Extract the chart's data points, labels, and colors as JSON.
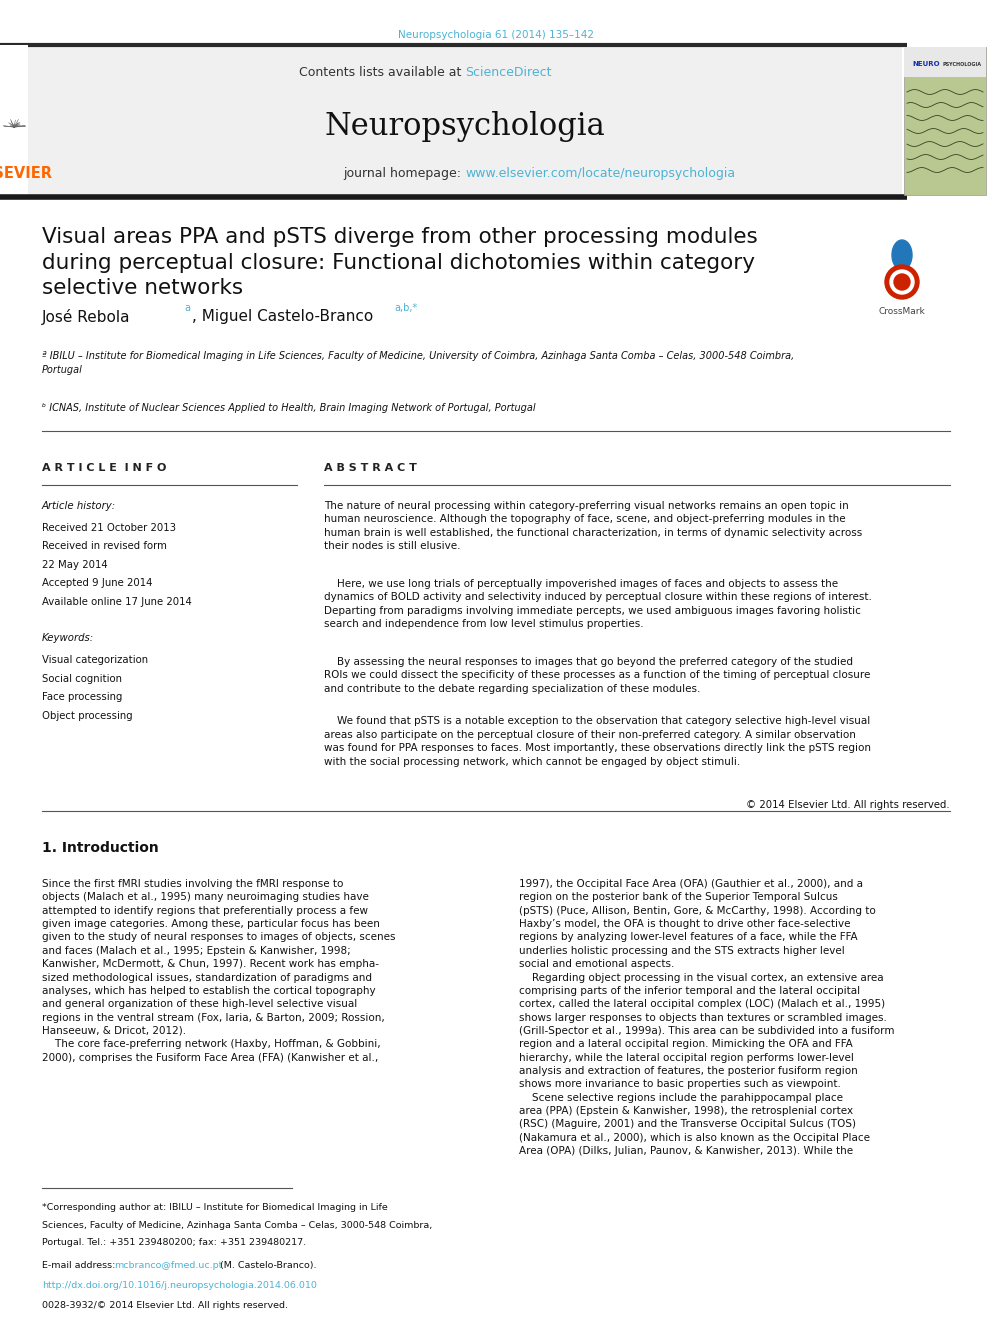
{
  "background_color": "#ffffff",
  "page_width": 9.92,
  "page_height": 13.23,
  "journal_ref": "Neuropsychologia 61 (2014) 135–142",
  "journal_ref_color": "#4db3d4",
  "header_bg": "#f0f0f0",
  "contents_text": "Contents lists available at ",
  "sciencedirect_text": "ScienceDirect",
  "sciencedirect_color": "#4db3d4",
  "journal_name": "Neuropsychologia",
  "journal_homepage_prefix": "journal homepage: ",
  "journal_homepage_url": "www.elsevier.com/locate/neuropsychologia",
  "journal_homepage_color": "#4db3d4",
  "elsevier_color": "#FF6600",
  "title": "Visual areas PPA and pSTS diverge from other processing modules\nduring perceptual closure: Functional dichotomies within category\nselective networks",
  "authors": "José Rebola",
  "authors_super": "a",
  "authors2": ", Miguel Castelo-Branco",
  "authors2_super": "a,b,*",
  "affil_a": "ª IBILU – Institute for Biomedical Imaging in Life Sciences, Faculty of Medicine, University of Coimbra, Azinhaga Santa Comba – Celas, 3000-548 Coimbra,\nPortugal",
  "affil_b": "ᵇ ICNAS, Institute of Nuclear Sciences Applied to Health, Brain Imaging Network of Portugal, Portugal",
  "section_article_info": "A R T I C L E  I N F O",
  "section_abstract": "A B S T R A C T",
  "article_history_label": "Article history:",
  "received1": "Received 21 October 2013",
  "received2a": "Received in revised form",
  "received2b": "22 May 2014",
  "accepted": "Accepted 9 June 2014",
  "available": "Available online 17 June 2014",
  "keywords_label": "Keywords:",
  "keywords": [
    "Visual categorization",
    "Social cognition",
    "Face processing",
    "Object processing"
  ],
  "abstract_text1": "The nature of neural processing within category-preferring visual networks remains an open topic in\nhuman neuroscience. Although the topography of face, scene, and object-preferring modules in the\nhuman brain is well established, the functional characterization, in terms of dynamic selectivity across\ntheir nodes is still elusive.",
  "abstract_text2": "    Here, we use long trials of perceptually impoverished images of faces and objects to assess the\ndynamics of BOLD activity and selectivity induced by perceptual closure within these regions of interest.\nDeparting from paradigms involving immediate percepts, we used ambiguous images favoring holistic\nsearch and independence from low level stimulus properties.",
  "abstract_text3": "    By assessing the neural responses to images that go beyond the preferred category of the studied\nROIs we could dissect the specificity of these processes as a function of the timing of perceptual closure\nand contribute to the debate regarding specialization of these modules.",
  "abstract_text4": "    We found that pSTS is a notable exception to the observation that category selective high-level visual\nareas also participate on the perceptual closure of their non-preferred category. A similar observation\nwas found for PPA responses to faces. Most importantly, these observations directly link the pSTS region\nwith the social processing network, which cannot be engaged by object stimuli.",
  "copyright": "© 2014 Elsevier Ltd. All rights reserved.",
  "intro_heading": "1. Introduction",
  "intro_col1_lines": [
    "Since the first fMRI studies involving the fMRI response to",
    "objects (Malach et al., 1995) many neuroimaging studies have",
    "attempted to identify regions that preferentially process a few",
    "given image categories. Among these, particular focus has been",
    "given to the study of neural responses to images of objects, scenes",
    "and faces (Malach et al., 1995; Epstein & Kanwisher, 1998;",
    "Kanwisher, McDermott, & Chun, 1997). Recent work has empha-",
    "sized methodological issues, standardization of paradigms and",
    "analyses, which has helped to establish the cortical topography",
    "and general organization of these high-level selective visual",
    "regions in the ventral stream (Fox, Iaria, & Barton, 2009; Rossion,",
    "Hanseeuw, & Dricot, 2012).",
    "    The core face-preferring network (Haxby, Hoffman, & Gobbini,",
    "2000), comprises the Fusiform Face Area (FFA) (Kanwisher et al.,"
  ],
  "intro_col2_lines": [
    "1997), the Occipital Face Area (OFA) (Gauthier et al., 2000), and a",
    "region on the posterior bank of the Superior Temporal Sulcus",
    "(pSTS) (Puce, Allison, Bentin, Gore, & McCarthy, 1998). According to",
    "Haxby’s model, the OFA is thought to drive other face-selective",
    "regions by analyzing lower-level features of a face, while the FFA",
    "underlies holistic processing and the STS extracts higher level",
    "social and emotional aspects.",
    "    Regarding object processing in the visual cortex, an extensive area",
    "comprising parts of the inferior temporal and the lateral occipital",
    "cortex, called the lateral occipital complex (LOC) (Malach et al., 1995)",
    "shows larger responses to objects than textures or scrambled images.",
    "(Grill-Spector et al., 1999a). This area can be subdivided into a fusiform",
    "region and a lateral occipital region. Mimicking the OFA and FFA",
    "hierarchy, while the lateral occipital region performs lower-level",
    "analysis and extraction of features, the posterior fusiform region",
    "shows more invariance to basic properties such as viewpoint.",
    "    Scene selective regions include the parahippocampal place",
    "area (PPA) (Epstein & Kanwisher, 1998), the retrosplenial cortex",
    "(RSC) (Maguire, 2001) and the Transverse Occipital Sulcus (TOS)",
    "(Nakamura et al., 2000), which is also known as the Occipital Place",
    "Area (OPA) (Dilks, Julian, Paunov, & Kanwisher, 2013). While the"
  ],
  "footnote_star": "*Corresponding author at: IBILU – Institute for Biomedical Imaging in Life",
  "footnote_star2": "Sciences, Faculty of Medicine, Azinhaga Santa Comba – Celas, 3000-548 Coimbra,",
  "footnote_star3": "Portugal. Tel.: +351 239480200; fax: +351 239480217.",
  "footnote_email_label": "E-mail address: ",
  "footnote_email": "mcbranco@fmed.uc.pt",
  "footnote_email_suffix": " (M. Castelo-Branco).",
  "footnote_doi": "http://dx.doi.org/10.1016/j.neuropsychologia.2014.06.010",
  "footnote_issn": "0028-3932/© 2014 Elsevier Ltd. All rights reserved.",
  "link_color": "#4db3d4",
  "text_color": "#111111"
}
